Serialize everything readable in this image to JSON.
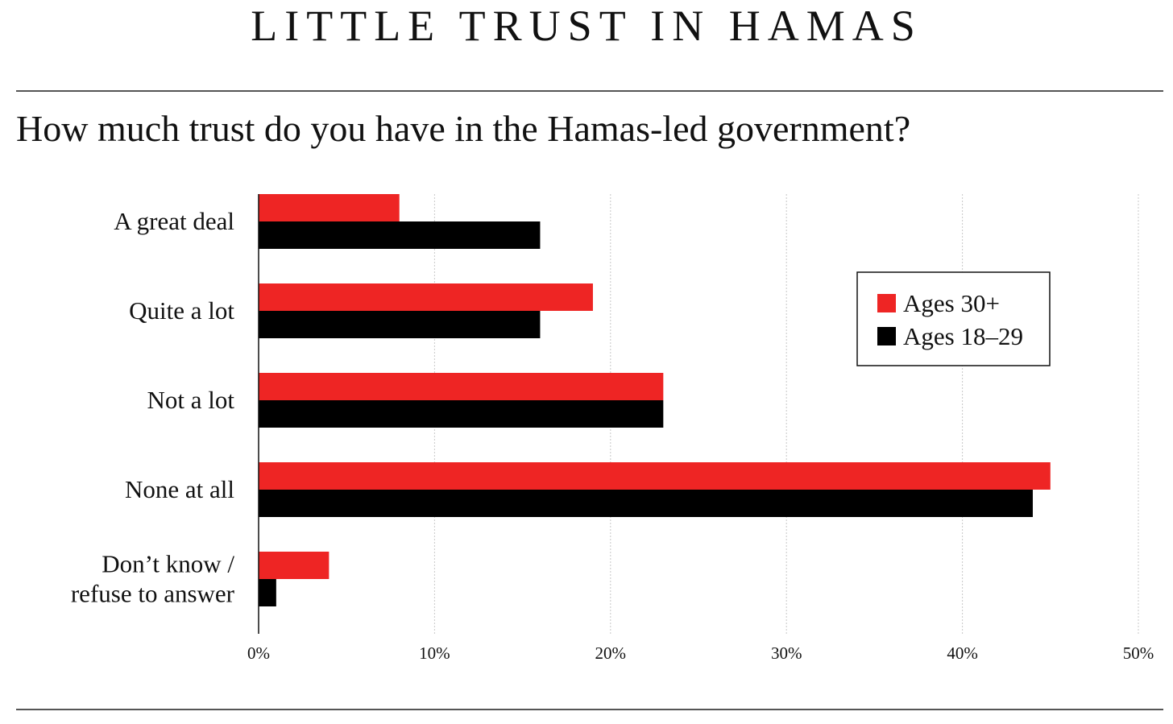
{
  "header": {
    "title": "LITTLE TRUST IN HAMAS",
    "subtitle": "How much trust do you have in the Hamas-led government?"
  },
  "chart_data": {
    "type": "bar",
    "orientation": "horizontal",
    "categories": [
      [
        "A great deal"
      ],
      [
        "Quite a lot"
      ],
      [
        "Not a lot"
      ],
      [
        "None at all"
      ],
      [
        "Don’t know /",
        "refuse to answer"
      ]
    ],
    "series": [
      {
        "name": "Ages 30+",
        "color": "#ee2524",
        "values": [
          8,
          19,
          23,
          45,
          4
        ]
      },
      {
        "name": "Ages 18–29",
        "color": "#000000",
        "values": [
          16,
          16,
          23,
          44,
          1
        ]
      }
    ],
    "xlim": [
      0,
      50
    ],
    "xticks": [
      0,
      10,
      20,
      30,
      40,
      50
    ],
    "tick_format": "{v}%",
    "grid": true,
    "legend_position": "top-right"
  }
}
